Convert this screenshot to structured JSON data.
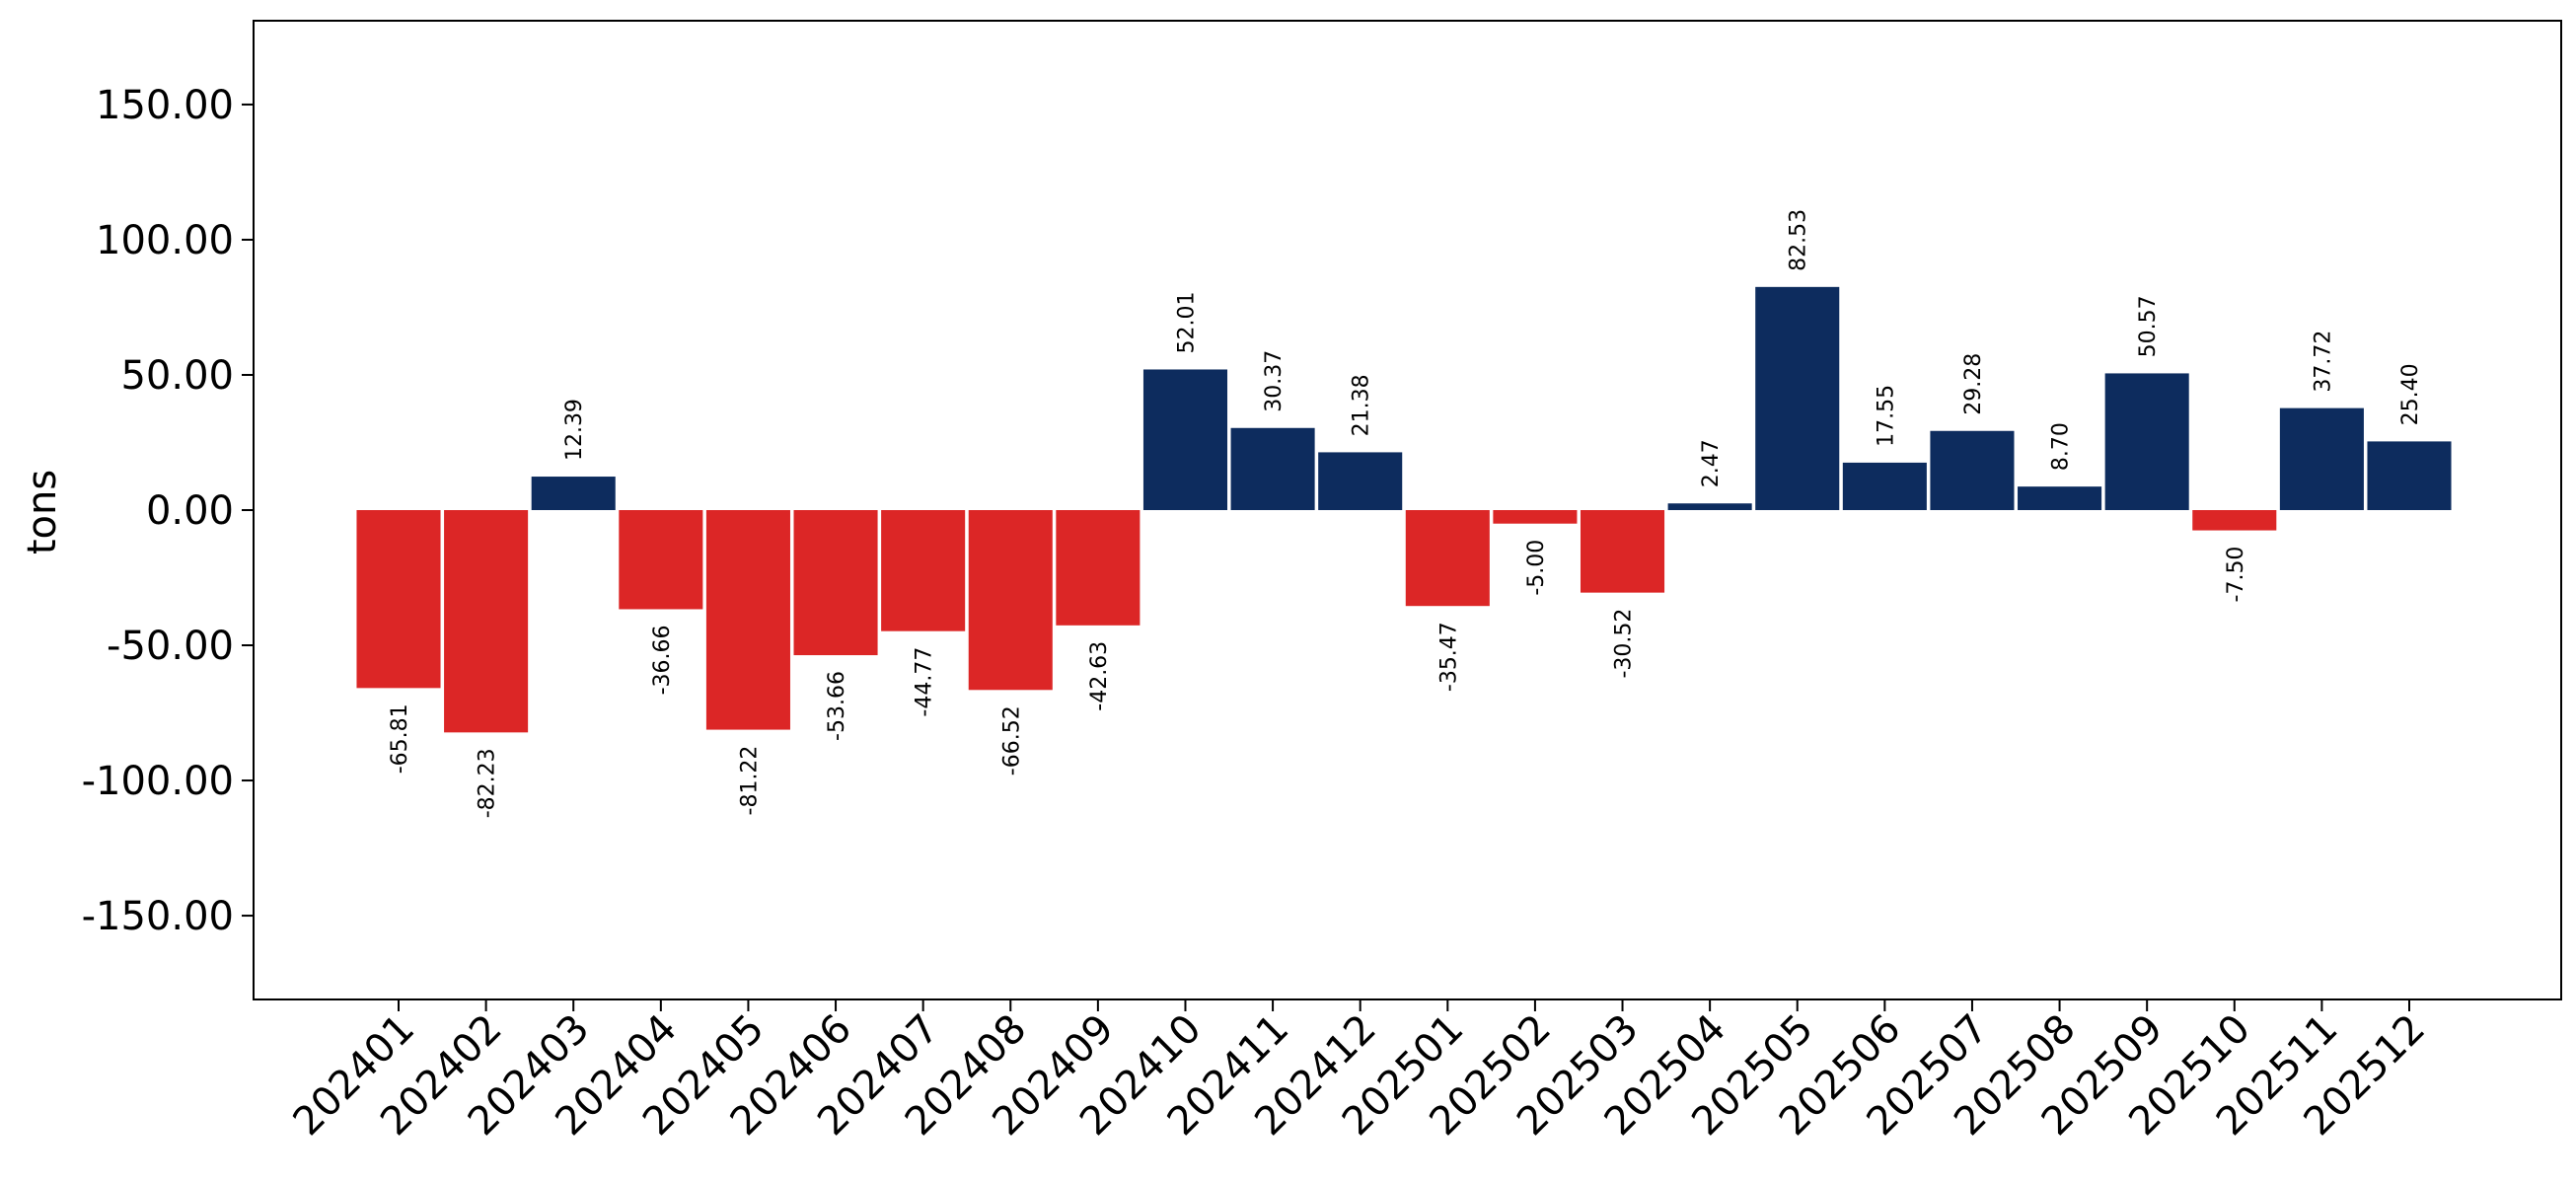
{
  "chart_data": {
    "type": "bar",
    "categories": [
      "202401",
      "202402",
      "202403",
      "202404",
      "202405",
      "202406",
      "202407",
      "202408",
      "202409",
      "202410",
      "202411",
      "202412",
      "202501",
      "202502",
      "202503",
      "202504",
      "202505",
      "202506",
      "202507",
      "202508",
      "202509",
      "202510",
      "202511",
      "202512"
    ],
    "values": [
      -65.81,
      -82.23,
      12.39,
      -36.66,
      -81.22,
      -53.66,
      -44.77,
      -66.52,
      -42.63,
      52.01,
      30.37,
      21.38,
      -35.47,
      -5.0,
      -30.52,
      2.47,
      82.53,
      17.55,
      29.28,
      8.7,
      50.57,
      -7.5,
      37.72,
      25.4
    ],
    "value_labels": [
      "-65.81",
      "-82.23",
      "12.39",
      "-36.66",
      "-81.22",
      "-53.66",
      "-44.77",
      "-66.52",
      "-42.63",
      "52.01",
      "30.37",
      "21.38",
      "-35.47",
      "-5.00",
      "-30.52",
      "2.47",
      "82.53",
      "17.55",
      "29.28",
      "8.70",
      "50.57",
      "-7.50",
      "37.72",
      "25.40"
    ],
    "ylabel": "tons",
    "ylim": [
      -181,
      181
    ],
    "yticks": [
      -150,
      -100,
      -50,
      0,
      50,
      100,
      150
    ],
    "ytick_labels": [
      "-150.00",
      "-100.00",
      "-50.00",
      "0.00",
      "50.00",
      "100.00",
      "150.00"
    ],
    "grid": false,
    "colors": {
      "positive": "#0d2c5e",
      "negative": "#dc2626"
    }
  }
}
